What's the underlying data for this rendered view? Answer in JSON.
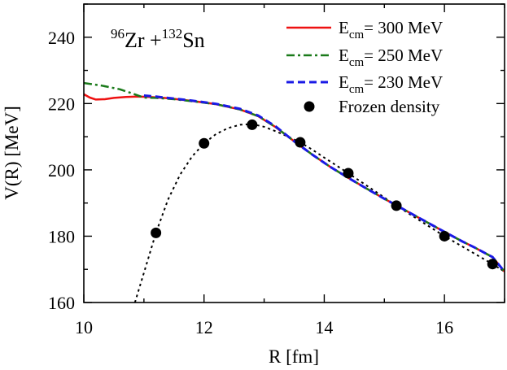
{
  "chart_data": {
    "type": "line",
    "xlabel": "R [fm]",
    "ylabel": "V(R) [MeV]",
    "xlim": [
      10,
      17
    ],
    "ylim": [
      160,
      250
    ],
    "x_ticks": [
      10,
      12,
      14,
      16
    ],
    "y_ticks": [
      160,
      180,
      200,
      220,
      240
    ],
    "annotation": {
      "label_a_mass": "96",
      "label_a_elem": "Zr",
      "label_plus": " +",
      "label_b_mass": "132",
      "label_b_elem": "Sn"
    },
    "legend_placement": "top-right",
    "legend_prefix": "E",
    "legend_sub": "cm",
    "series": [
      {
        "name": "= 300 MeV",
        "color": "#ee1111",
        "dash": "solid",
        "x": [
          10.0,
          10.1,
          10.2,
          10.35,
          10.5,
          10.7,
          10.9,
          11.1,
          11.4,
          11.8,
          12.2,
          12.6,
          12.9,
          13.2,
          13.5,
          13.8,
          14.1,
          14.4,
          14.7,
          15.0,
          15.2,
          15.5,
          15.8,
          16.0,
          16.3,
          16.5,
          16.8,
          17.0
        ],
        "y": [
          222.8,
          221.8,
          221.2,
          221.3,
          221.7,
          222.0,
          222.1,
          222.0,
          221.6,
          220.8,
          219.8,
          218.2,
          216.2,
          212.8,
          208.6,
          204.6,
          200.9,
          197.6,
          194.4,
          191.3,
          189.3,
          186.3,
          183.3,
          181.3,
          178.4,
          176.6,
          173.7,
          169.3
        ]
      },
      {
        "name": "= 250 MeV",
        "color": "#1a7a1a",
        "dash": "dashdot",
        "x": [
          10.0,
          10.3,
          10.6,
          10.8,
          11.0,
          11.2,
          11.5,
          11.8,
          12.2,
          12.6,
          12.9,
          13.2,
          13.5,
          13.8,
          14.1,
          14.4,
          14.7,
          15.0,
          15.2,
          15.5,
          15.8,
          16.0,
          16.3,
          16.5,
          16.8,
          17.0
        ],
        "y": [
          226.2,
          225.4,
          224.3,
          223.1,
          221.8,
          221.7,
          221.3,
          220.7,
          219.8,
          218.2,
          216.2,
          212.8,
          208.6,
          204.6,
          200.9,
          197.6,
          194.4,
          191.3,
          189.3,
          186.3,
          183.3,
          181.3,
          178.4,
          176.6,
          173.7,
          169.3
        ]
      },
      {
        "name": "= 230 MeV",
        "color": "#1a1ae6",
        "dash": "dash",
        "x": [
          11.0,
          11.2,
          11.5,
          11.8,
          12.2,
          12.6,
          12.9,
          13.2,
          13.5,
          13.8,
          14.1,
          14.4,
          14.7,
          15.0,
          15.2,
          15.5,
          15.8,
          16.0,
          16.3,
          16.5,
          16.8,
          17.0
        ],
        "y": [
          222.4,
          222.1,
          221.5,
          220.9,
          219.9,
          218.4,
          216.4,
          213.0,
          208.6,
          204.6,
          200.9,
          197.6,
          194.4,
          191.3,
          189.3,
          186.3,
          183.3,
          181.3,
          178.4,
          176.6,
          173.7,
          169.3
        ]
      },
      {
        "name": "Frozen density",
        "color": "#000000",
        "marker": "circle",
        "x": [
          11.2,
          12.0,
          12.8,
          13.6,
          14.4,
          15.2,
          16.0,
          16.8
        ],
        "y": [
          181.0,
          208.0,
          213.6,
          208.3,
          199.0,
          189.2,
          180.0,
          171.6
        ]
      }
    ],
    "fit_curve": {
      "color": "#000000",
      "dash": "dotted",
      "x": [
        10.85,
        10.95,
        11.05,
        11.2,
        11.4,
        11.6,
        11.8,
        12.0,
        12.2,
        12.4,
        12.6,
        12.8,
        13.0,
        13.2,
        13.4,
        13.6,
        13.8,
        14.0,
        14.4,
        14.8,
        15.2,
        15.6,
        16.0,
        16.4,
        16.8,
        17.0
      ],
      "y": [
        160.0,
        166.0,
        172.0,
        181.0,
        191.0,
        198.5,
        204.0,
        208.0,
        210.8,
        212.6,
        213.6,
        213.8,
        213.0,
        211.6,
        210.0,
        208.3,
        206.1,
        203.7,
        199.0,
        194.1,
        189.2,
        184.6,
        180.0,
        175.8,
        171.6,
        169.3
      ]
    }
  }
}
